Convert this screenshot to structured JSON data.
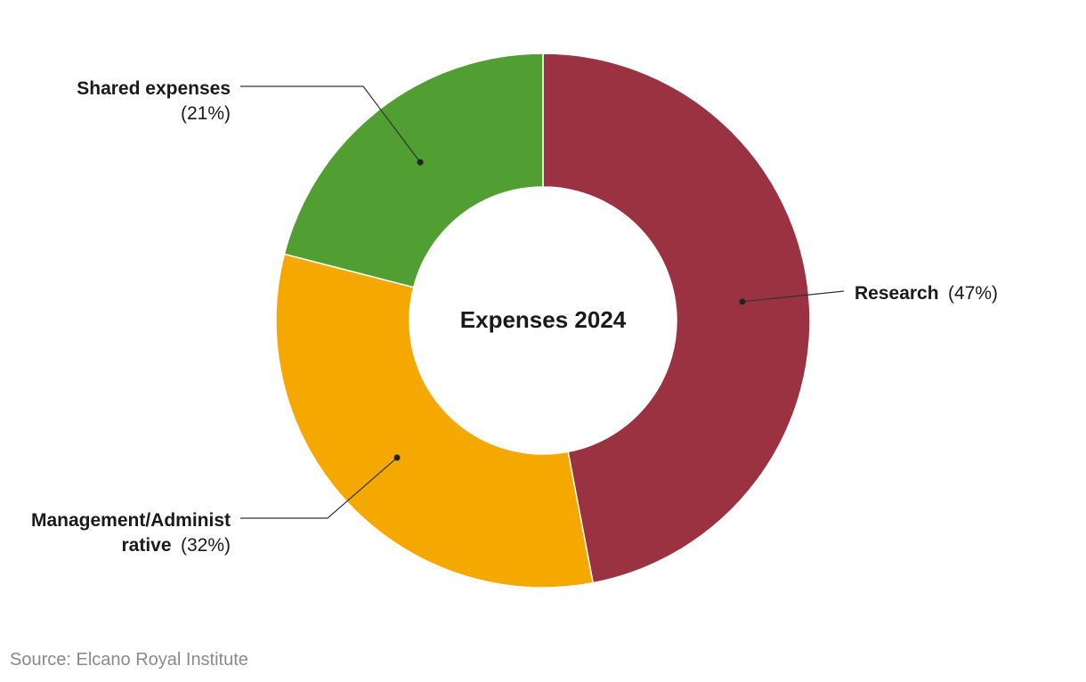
{
  "chart_data": {
    "type": "pie",
    "variant": "donut",
    "title": "Expenses 2024",
    "slices": [
      {
        "name": "Research",
        "name_line2": "",
        "value": 47,
        "pct_label": "(47%)",
        "color": "#9b3241"
      },
      {
        "name": "Management/Administ",
        "name_line2": "rative",
        "value": 32,
        "pct_label": "(32%)",
        "color": "#f5a800"
      },
      {
        "name": "Shared expenses",
        "name_line2": "",
        "value": 21,
        "pct_label": "(21%)",
        "color": "#519e32"
      }
    ]
  },
  "source": "Source: Elcano Royal Institute"
}
